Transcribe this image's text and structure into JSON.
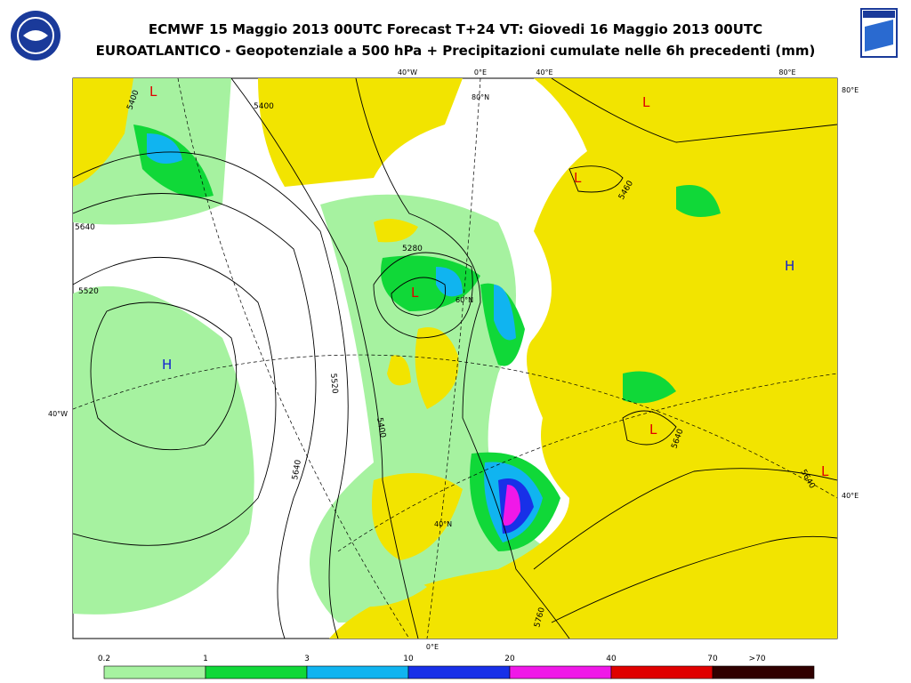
{
  "header": {
    "title": "ECMWF 15 Maggio 2013 00UTC Forecast T+24 VT: Giovedi 16 Maggio 2013 00UTC",
    "subtitle": "EUROATLANTICO - Geopotenziale a 500 hPa + Precipitazioni cumulate nelle 6h precedenti (mm)"
  },
  "map": {
    "coords": {
      "top_40w": "40°W",
      "top_0e": "0°E",
      "top_40e": "40°E",
      "top_80e": "80°E",
      "right_80e": "80°E",
      "left_40w": "40°W",
      "right_40e": "40°E",
      "bottom_0e": "0°E",
      "n80": "80°N",
      "n40": "40°N",
      "n60": "60°N"
    },
    "lows": [
      "L",
      "L",
      "L",
      "L",
      "L",
      "L"
    ],
    "highs": [
      "H",
      "H"
    ],
    "contours": [
      "5400",
      "5280",
      "5520",
      "5640",
      "5760",
      "5400",
      "5640",
      "5640",
      "5640",
      "5520",
      "5400",
      "5460"
    ]
  },
  "legend": {
    "labels": [
      "0.2",
      "1",
      "3",
      "10",
      "20",
      "40",
      "70",
      ">70"
    ],
    "colors": [
      "#a6f2a0",
      "#10d838",
      "#10b4f0",
      "#1830e8",
      "#f018e8",
      "#e00000",
      "#300000"
    ]
  }
}
